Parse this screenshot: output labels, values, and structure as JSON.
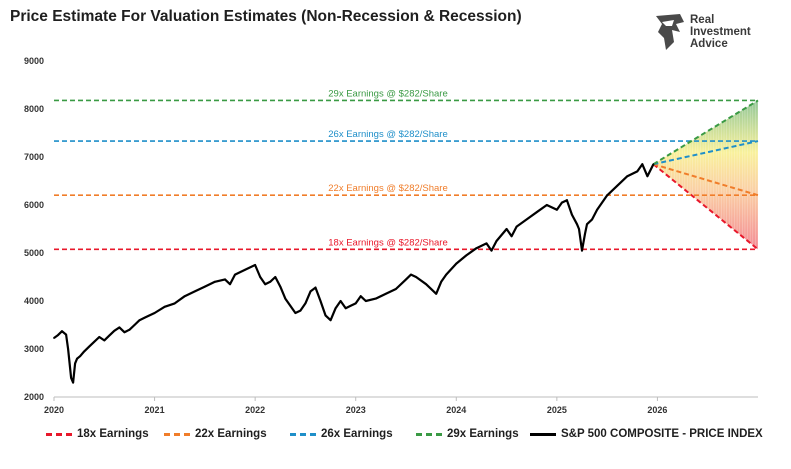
{
  "title": "Price Estimate For Valuation Estimates (Non-Recession & Recession)",
  "logo": {
    "line1": "Real",
    "line2": "Investment",
    "line3": "Advice"
  },
  "chart_data": {
    "type": "line",
    "title": "Price Estimate For Valuation Estimates (Non-Recession & Recession)",
    "xlabel": "",
    "ylabel": "",
    "xlim": [
      2020.0,
      2027.0
    ],
    "ylim": [
      2000,
      9000
    ],
    "x_ticks": [
      "2020",
      "2021",
      "2022",
      "2023",
      "2024",
      "2025",
      "2026"
    ],
    "y_ticks": [
      "2000",
      "3000",
      "4000",
      "5000",
      "6000",
      "7000",
      "8000",
      "9000"
    ],
    "grid": false,
    "legend_position": "bottom",
    "projection_start": {
      "x": 2025.96,
      "y": 6850
    },
    "projection_end_x": 2027.0,
    "levels": [
      {
        "name": "18x Earnings",
        "label": "18x Earnings @ $282/Share",
        "value": 5076,
        "color": "#e8182b"
      },
      {
        "name": "22x Earnings",
        "label": "22x Earnings @ $282/Share",
        "value": 6204,
        "color": "#f07d2a"
      },
      {
        "name": "26x Earnings",
        "label": "26x Earnings @ $282/Share",
        "value": 7332,
        "color": "#1f8fc9"
      },
      {
        "name": "29x Earnings",
        "label": "29x Earnings @ $282/Share",
        "value": 8178,
        "color": "#3a9a44"
      }
    ],
    "series": [
      {
        "name": "S&P 500 COMPOSITE - PRICE INDEX",
        "color": "#000000",
        "x": [
          2020.0,
          2020.04,
          2020.08,
          2020.12,
          2020.14,
          2020.17,
          2020.19,
          2020.21,
          2020.23,
          2020.26,
          2020.3,
          2020.35,
          2020.4,
          2020.45,
          2020.5,
          2020.55,
          2020.6,
          2020.65,
          2020.7,
          2020.75,
          2020.8,
          2020.85,
          2020.9,
          2020.95,
          2021.0,
          2021.1,
          2021.2,
          2021.3,
          2021.4,
          2021.5,
          2021.6,
          2021.7,
          2021.75,
          2021.8,
          2021.9,
          2022.0,
          2022.05,
          2022.1,
          2022.15,
          2022.2,
          2022.25,
          2022.3,
          2022.35,
          2022.4,
          2022.45,
          2022.5,
          2022.55,
          2022.6,
          2022.65,
          2022.7,
          2022.75,
          2022.8,
          2022.85,
          2022.9,
          2022.95,
          2023.0,
          2023.05,
          2023.1,
          2023.2,
          2023.3,
          2023.4,
          2023.5,
          2023.55,
          2023.6,
          2023.7,
          2023.8,
          2023.85,
          2023.9,
          2024.0,
          2024.1,
          2024.2,
          2024.3,
          2024.35,
          2024.4,
          2024.5,
          2024.55,
          2024.6,
          2024.7,
          2024.8,
          2024.9,
          2025.0,
          2025.05,
          2025.1,
          2025.15,
          2025.2,
          2025.22,
          2025.25,
          2025.28,
          2025.3,
          2025.35,
          2025.4,
          2025.5,
          2025.6,
          2025.7,
          2025.8,
          2025.85,
          2025.9,
          2025.96
        ],
        "values": [
          3230,
          3290,
          3370,
          3300,
          3000,
          2400,
          2300,
          2700,
          2800,
          2850,
          2950,
          3050,
          3150,
          3250,
          3180,
          3280,
          3380,
          3450,
          3350,
          3400,
          3500,
          3600,
          3650,
          3700,
          3750,
          3880,
          3950,
          4100,
          4200,
          4300,
          4400,
          4450,
          4350,
          4550,
          4650,
          4750,
          4500,
          4350,
          4400,
          4500,
          4300,
          4050,
          3900,
          3750,
          3800,
          3950,
          4200,
          4280,
          4000,
          3700,
          3600,
          3850,
          4000,
          3850,
          3900,
          3950,
          4100,
          4000,
          4050,
          4150,
          4250,
          4450,
          4550,
          4500,
          4350,
          4150,
          4400,
          4550,
          4780,
          4950,
          5100,
          5200,
          5050,
          5250,
          5500,
          5350,
          5550,
          5700,
          5850,
          6000,
          5900,
          6050,
          6100,
          5800,
          5600,
          5500,
          5050,
          5400,
          5600,
          5700,
          5900,
          6200,
          6400,
          6600,
          6700,
          6850,
          6600,
          6850
        ]
      }
    ]
  },
  "legend": [
    {
      "label": "18x Earnings",
      "color": "#e8182b",
      "style": "dashed"
    },
    {
      "label": "22x Earnings",
      "color": "#f07d2a",
      "style": "dashed"
    },
    {
      "label": "26x Earnings",
      "color": "#1f8fc9",
      "style": "dashed"
    },
    {
      "label": "29x Earnings",
      "color": "#3a9a44",
      "style": "dashed"
    },
    {
      "label": "S&P 500 COMPOSITE - PRICE INDEX",
      "color": "#000000",
      "style": "solid"
    }
  ]
}
